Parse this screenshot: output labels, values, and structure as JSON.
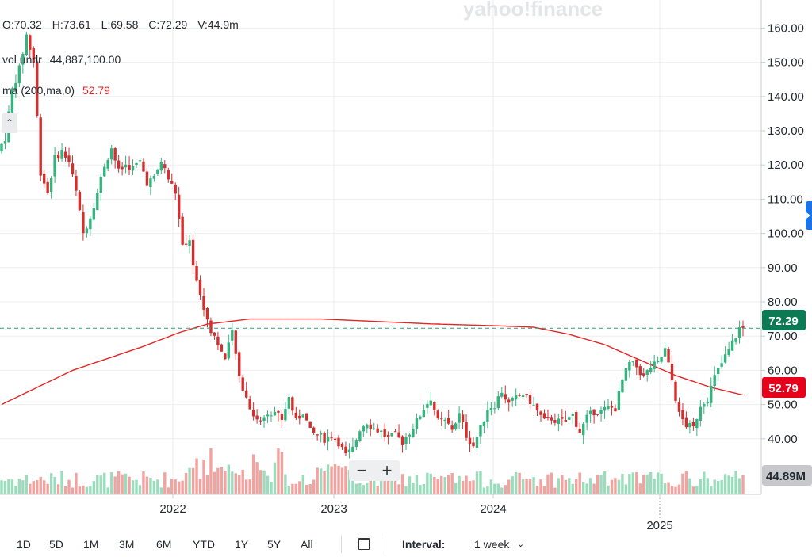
{
  "watermark": "yahoo!finance",
  "header": {
    "open": "O:70.32",
    "high": "H:73.61",
    "low": "L:69.58",
    "close": "C:72.29",
    "volume": "V:44.9m"
  },
  "studies": {
    "vol_label": "vol undr",
    "vol_value": "44,887,100.00",
    "ma_label": "ma (200,ma,0)",
    "ma_value": "52.79"
  },
  "collapse_icon": "chevron-up-icon",
  "zoom": {
    "minus": "−",
    "plus": "+"
  },
  "toolbar": {
    "ranges": [
      "1D",
      "5D",
      "1M",
      "3M",
      "6M",
      "YTD",
      "1Y",
      "5Y",
      "All"
    ],
    "calendar_icon": "calendar-icon",
    "interval_label": "Interval:",
    "interval_value": "1 week",
    "interval_icon": "chevron-down-icon"
  },
  "colors": {
    "up": "#35b37e",
    "down": "#d22f2f",
    "ma": "#e32626",
    "volume_up": "#9bdcbc",
    "volume_down": "#f2a39f",
    "last_price_badge": "#0b7a55",
    "ma_badge": "#e6001a",
    "volume_badge": "#c6c8cc"
  },
  "chart_data": {
    "type": "candlestick",
    "interval": "1 week",
    "x_ticks": [
      "2022",
      "2023",
      "2024",
      "2025"
    ],
    "y_ticks": [
      "40.00",
      "50.00",
      "60.00",
      "70.00",
      "80.00",
      "90.00",
      "100.00",
      "110.00",
      "120.00",
      "130.00",
      "140.00",
      "150.00",
      "160.00"
    ],
    "ylim": [
      29,
      163
    ],
    "grid": true,
    "last_price": 72.29,
    "last_price_label": "72.29",
    "ma_last_label": "52.79",
    "volume_last_label": "44.89M",
    "anchors": [
      {
        "t": 0,
        "v": 124
      },
      {
        "t": 2,
        "v": 128
      },
      {
        "t": 4,
        "v": 142
      },
      {
        "t": 6,
        "v": 148
      },
      {
        "t": 8,
        "v": 158
      },
      {
        "t": 10,
        "v": 150
      },
      {
        "t": 12,
        "v": 118
      },
      {
        "t": 14,
        "v": 112
      },
      {
        "t": 16,
        "v": 122
      },
      {
        "t": 18,
        "v": 124
      },
      {
        "t": 20,
        "v": 121
      },
      {
        "t": 22,
        "v": 112
      },
      {
        "t": 24,
        "v": 100
      },
      {
        "t": 26,
        "v": 105
      },
      {
        "t": 28,
        "v": 112
      },
      {
        "t": 30,
        "v": 120
      },
      {
        "t": 32,
        "v": 125
      },
      {
        "t": 34,
        "v": 118
      },
      {
        "t": 36,
        "v": 120
      },
      {
        "t": 38,
        "v": 119
      },
      {
        "t": 40,
        "v": 121
      },
      {
        "t": 42,
        "v": 115
      },
      {
        "t": 44,
        "v": 116
      },
      {
        "t": 46,
        "v": 121
      },
      {
        "t": 48,
        "v": 116
      },
      {
        "t": 50,
        "v": 112
      },
      {
        "t": 52,
        "v": 96
      },
      {
        "t": 54,
        "v": 97
      },
      {
        "t": 56,
        "v": 86
      },
      {
        "t": 58,
        "v": 78
      },
      {
        "t": 60,
        "v": 72
      },
      {
        "t": 62,
        "v": 68
      },
      {
        "t": 64,
        "v": 63
      },
      {
        "t": 66,
        "v": 71
      },
      {
        "t": 68,
        "v": 58
      },
      {
        "t": 70,
        "v": 52
      },
      {
        "t": 72,
        "v": 47
      },
      {
        "t": 74,
        "v": 45
      },
      {
        "t": 76,
        "v": 48
      },
      {
        "t": 78,
        "v": 48
      },
      {
        "t": 80,
        "v": 46
      },
      {
        "t": 82,
        "v": 52
      },
      {
        "t": 84,
        "v": 45
      },
      {
        "t": 86,
        "v": 48
      },
      {
        "t": 88,
        "v": 42
      },
      {
        "t": 90,
        "v": 41
      },
      {
        "t": 92,
        "v": 40
      },
      {
        "t": 94,
        "v": 41
      },
      {
        "t": 96,
        "v": 39
      },
      {
        "t": 98,
        "v": 35
      },
      {
        "t": 100,
        "v": 37
      },
      {
        "t": 102,
        "v": 43
      },
      {
        "t": 104,
        "v": 45
      },
      {
        "t": 106,
        "v": 43
      },
      {
        "t": 108,
        "v": 42
      },
      {
        "t": 110,
        "v": 40
      },
      {
        "t": 112,
        "v": 41
      },
      {
        "t": 114,
        "v": 39
      },
      {
        "t": 116,
        "v": 42
      },
      {
        "t": 118,
        "v": 45
      },
      {
        "t": 120,
        "v": 49
      },
      {
        "t": 122,
        "v": 52
      },
      {
        "t": 124,
        "v": 45
      },
      {
        "t": 126,
        "v": 45
      },
      {
        "t": 128,
        "v": 43
      },
      {
        "t": 130,
        "v": 47
      },
      {
        "t": 132,
        "v": 41
      },
      {
        "t": 134,
        "v": 38
      },
      {
        "t": 136,
        "v": 43
      },
      {
        "t": 138,
        "v": 49
      },
      {
        "t": 140,
        "v": 50
      },
      {
        "t": 142,
        "v": 54
      },
      {
        "t": 144,
        "v": 50
      },
      {
        "t": 146,
        "v": 52
      },
      {
        "t": 148,
        "v": 53
      },
      {
        "t": 150,
        "v": 51
      },
      {
        "t": 152,
        "v": 48
      },
      {
        "t": 154,
        "v": 45
      },
      {
        "t": 156,
        "v": 46
      },
      {
        "t": 158,
        "v": 45
      },
      {
        "t": 160,
        "v": 45
      },
      {
        "t": 162,
        "v": 47
      },
      {
        "t": 164,
        "v": 42
      },
      {
        "t": 166,
        "v": 46
      },
      {
        "t": 168,
        "v": 48
      },
      {
        "t": 170,
        "v": 48
      },
      {
        "t": 172,
        "v": 49
      },
      {
        "t": 174,
        "v": 49
      },
      {
        "t": 176,
        "v": 57
      },
      {
        "t": 178,
        "v": 62
      },
      {
        "t": 180,
        "v": 61
      },
      {
        "t": 182,
        "v": 58
      },
      {
        "t": 184,
        "v": 61
      },
      {
        "t": 186,
        "v": 62
      },
      {
        "t": 188,
        "v": 66
      },
      {
        "t": 190,
        "v": 57
      },
      {
        "t": 192,
        "v": 47
      },
      {
        "t": 194,
        "v": 44
      },
      {
        "t": 196,
        "v": 43
      },
      {
        "t": 198,
        "v": 50
      },
      {
        "t": 200,
        "v": 52
      },
      {
        "t": 202,
        "v": 58
      },
      {
        "t": 204,
        "v": 62
      },
      {
        "t": 206,
        "v": 66
      },
      {
        "t": 208,
        "v": 70
      },
      {
        "t": 209,
        "v": 72.29
      }
    ],
    "ma": [
      {
        "t": 0,
        "v": 50
      },
      {
        "t": 20,
        "v": 60
      },
      {
        "t": 40,
        "v": 67
      },
      {
        "t": 50,
        "v": 71
      },
      {
        "t": 58,
        "v": 73.5
      },
      {
        "t": 70,
        "v": 75
      },
      {
        "t": 90,
        "v": 75
      },
      {
        "t": 120,
        "v": 73.6
      },
      {
        "t": 140,
        "v": 73
      },
      {
        "t": 150,
        "v": 72.6
      },
      {
        "t": 160,
        "v": 70.5
      },
      {
        "t": 170,
        "v": 67.5
      },
      {
        "t": 180,
        "v": 63
      },
      {
        "t": 190,
        "v": 58.5
      },
      {
        "t": 200,
        "v": 55
      },
      {
        "t": 209,
        "v": 52.79
      }
    ],
    "volume_ma_level": 0.5
  }
}
